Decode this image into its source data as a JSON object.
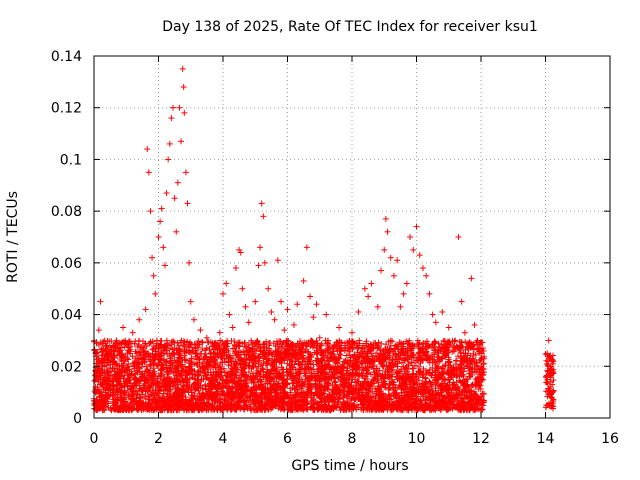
{
  "chart_data": {
    "type": "scatter",
    "title": "Day 138 of 2025, Rate Of TEC Index for receiver ksu1",
    "xlabel": "GPS time / hours",
    "ylabel": "ROTI / TECUs",
    "xlim": [
      0,
      16
    ],
    "ylim": [
      0,
      0.14
    ],
    "xticks": [
      0,
      2,
      4,
      6,
      8,
      10,
      12,
      14,
      16
    ],
    "yticks": [
      0,
      0.02,
      0.04,
      0.06,
      0.08,
      0.1,
      0.12,
      0.14
    ],
    "xtick_labels": [
      "0",
      "2",
      "4",
      "6",
      "8",
      "10",
      "12",
      "14",
      "16"
    ],
    "ytick_labels": [
      "0",
      "0.02",
      "0.04",
      "0.06",
      "0.08",
      "0.1",
      "0.12",
      "0.14"
    ],
    "grid": true,
    "marker": "plus",
    "color": "#ff0000",
    "series": [
      {
        "name": "ROTI",
        "points": [
          [
            0.05,
            0.012
          ],
          [
            0.1,
            0.018
          ],
          [
            0.15,
            0.034
          ],
          [
            0.2,
            0.045
          ],
          [
            0.25,
            0.022
          ],
          [
            0.3,
            0.015
          ],
          [
            0.4,
            0.028
          ],
          [
            0.5,
            0.011
          ],
          [
            0.6,
            0.024
          ],
          [
            0.7,
            0.03
          ],
          [
            0.8,
            0.019
          ],
          [
            0.9,
            0.035
          ],
          [
            1.0,
            0.014
          ],
          [
            1.1,
            0.026
          ],
          [
            1.2,
            0.033
          ],
          [
            1.3,
            0.021
          ],
          [
            1.4,
            0.038
          ],
          [
            1.5,
            0.017
          ],
          [
            1.6,
            0.042
          ],
          [
            1.65,
            0.104
          ],
          [
            1.7,
            0.095
          ],
          [
            1.75,
            0.08
          ],
          [
            1.8,
            0.062
          ],
          [
            1.85,
            0.055
          ],
          [
            1.9,
            0.048
          ],
          [
            1.95,
            0.03
          ],
          [
            2.0,
            0.07
          ],
          [
            2.05,
            0.076
          ],
          [
            2.1,
            0.081
          ],
          [
            2.15,
            0.066
          ],
          [
            2.2,
            0.059
          ],
          [
            2.25,
            0.087
          ],
          [
            2.3,
            0.1
          ],
          [
            2.35,
            0.106
          ],
          [
            2.4,
            0.116
          ],
          [
            2.45,
            0.12
          ],
          [
            2.5,
            0.085
          ],
          [
            2.55,
            0.072
          ],
          [
            2.6,
            0.091
          ],
          [
            2.65,
            0.12
          ],
          [
            2.7,
            0.107
          ],
          [
            2.75,
            0.135
          ],
          [
            2.78,
            0.128
          ],
          [
            2.8,
            0.118
          ],
          [
            2.85,
            0.095
          ],
          [
            2.9,
            0.083
          ],
          [
            2.95,
            0.06
          ],
          [
            3.0,
            0.045
          ],
          [
            3.1,
            0.038
          ],
          [
            3.2,
            0.025
          ],
          [
            3.3,
            0.034
          ],
          [
            3.4,
            0.019
          ],
          [
            3.5,
            0.031
          ],
          [
            3.6,
            0.022
          ],
          [
            3.7,
            0.028
          ],
          [
            3.8,
            0.015
          ],
          [
            3.9,
            0.033
          ],
          [
            4.0,
            0.048
          ],
          [
            4.1,
            0.052
          ],
          [
            4.2,
            0.04
          ],
          [
            4.3,
            0.035
          ],
          [
            4.4,
            0.058
          ],
          [
            4.5,
            0.065
          ],
          [
            4.55,
            0.064
          ],
          [
            4.6,
            0.05
          ],
          [
            4.7,
            0.043
          ],
          [
            4.8,
            0.037
          ],
          [
            4.9,
            0.029
          ],
          [
            5.0,
            0.045
          ],
          [
            5.1,
            0.059
          ],
          [
            5.15,
            0.066
          ],
          [
            5.2,
            0.083
          ],
          [
            5.25,
            0.078
          ],
          [
            5.3,
            0.06
          ],
          [
            5.4,
            0.05
          ],
          [
            5.5,
            0.041
          ],
          [
            5.6,
            0.038
          ],
          [
            5.7,
            0.061
          ],
          [
            5.8,
            0.045
          ],
          [
            5.9,
            0.034
          ],
          [
            6.0,
            0.042
          ],
          [
            6.1,
            0.028
          ],
          [
            6.2,
            0.036
          ],
          [
            6.3,
            0.044
          ],
          [
            6.4,
            0.025
          ],
          [
            6.5,
            0.053
          ],
          [
            6.6,
            0.066
          ],
          [
            6.7,
            0.047
          ],
          [
            6.8,
            0.039
          ],
          [
            6.9,
            0.044
          ],
          [
            7.0,
            0.031
          ],
          [
            7.2,
            0.04
          ],
          [
            7.4,
            0.027
          ],
          [
            7.6,
            0.035
          ],
          [
            7.8,
            0.022
          ],
          [
            8.0,
            0.033
          ],
          [
            8.2,
            0.041
          ],
          [
            8.4,
            0.05
          ],
          [
            8.5,
            0.047
          ],
          [
            8.6,
            0.052
          ],
          [
            8.8,
            0.043
          ],
          [
            8.9,
            0.057
          ],
          [
            9.0,
            0.065
          ],
          [
            9.05,
            0.077
          ],
          [
            9.1,
            0.072
          ],
          [
            9.2,
            0.062
          ],
          [
            9.3,
            0.055
          ],
          [
            9.4,
            0.061
          ],
          [
            9.5,
            0.043
          ],
          [
            9.6,
            0.048
          ],
          [
            9.7,
            0.052
          ],
          [
            9.8,
            0.07
          ],
          [
            9.9,
            0.065
          ],
          [
            10.0,
            0.074
          ],
          [
            10.1,
            0.063
          ],
          [
            10.2,
            0.058
          ],
          [
            10.3,
            0.055
          ],
          [
            10.4,
            0.048
          ],
          [
            10.5,
            0.04
          ],
          [
            10.6,
            0.037
          ],
          [
            10.8,
            0.041
          ],
          [
            11.0,
            0.035
          ],
          [
            11.2,
            0.03
          ],
          [
            11.3,
            0.07
          ],
          [
            11.4,
            0.045
          ],
          [
            11.5,
            0.033
          ],
          [
            11.6,
            0.025
          ],
          [
            11.7,
            0.054
          ],
          [
            11.8,
            0.036
          ],
          [
            11.9,
            0.02
          ],
          [
            12.0,
            0.015
          ],
          [
            14.05,
            0.025
          ],
          [
            14.1,
            0.03
          ],
          [
            14.12,
            0.018
          ],
          [
            14.15,
            0.012
          ],
          [
            14.18,
            0.008
          ],
          [
            14.2,
            0.005
          ]
        ]
      }
    ],
    "dense_band": {
      "x_range": [
        0,
        12.1
      ],
      "y_range": [
        0.003,
        0.03
      ],
      "count": 5200
    },
    "gap_cluster": {
      "x_range": [
        14.0,
        14.25
      ],
      "y_range": [
        0.003,
        0.025
      ],
      "count": 80
    }
  }
}
